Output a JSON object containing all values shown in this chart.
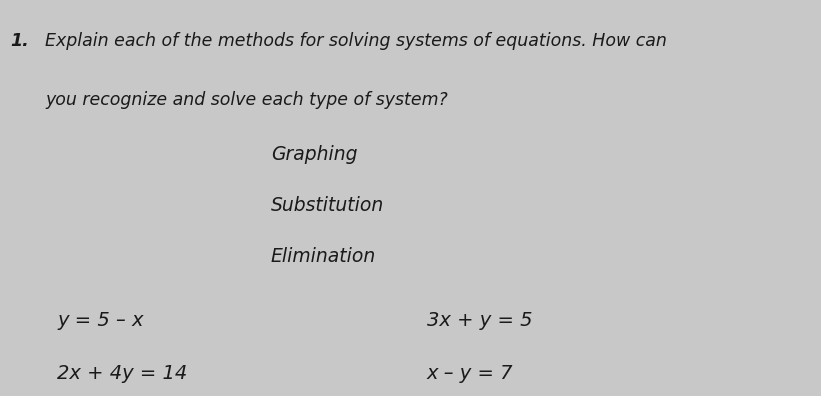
{
  "background_color": "#c8c8c8",
  "question_number": "1.",
  "question_line1": "Explain each of the methods for solving systems of equations. How can",
  "question_line2": "you recognize and solve each type of system?",
  "methods": [
    "Graphing",
    "Substitution",
    "Elimination"
  ],
  "eq_left_top": "y = 5 – x",
  "eq_left_bottom": "2x + 4y = 14",
  "eq_right_top": "3x + y = 5",
  "eq_right_bottom": "x – y = 7",
  "header_fontsize": 12.5,
  "method_fontsize": 13.5,
  "eq_fontsize": 14,
  "text_color": "#1a1a1a"
}
